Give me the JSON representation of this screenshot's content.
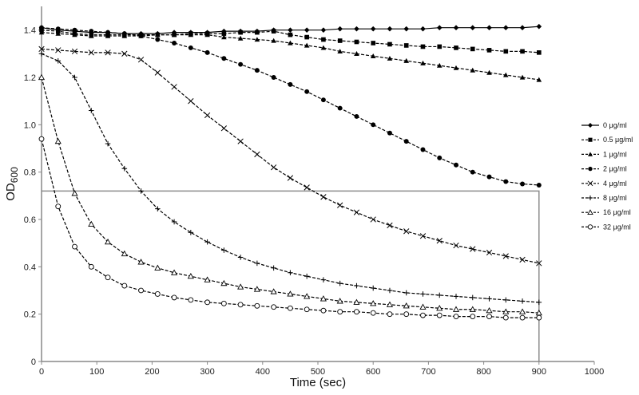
{
  "chart_data": {
    "type": "line",
    "title": "",
    "xlabel": "Time (sec)",
    "ylabel": {
      "main": "OD",
      "sub": "600"
    },
    "xlim": [
      0,
      1000
    ],
    "ylim": [
      0,
      1.5
    ],
    "xticks": [
      0,
      100,
      200,
      300,
      400,
      500,
      600,
      700,
      800,
      900,
      1000
    ],
    "yticks": [
      0,
      0.2,
      0.4,
      0.6,
      0.8,
      1.0,
      1.2,
      1.4
    ],
    "xtick_labels": [
      "0",
      "100",
      "200",
      "300",
      "400",
      "500",
      "600",
      "700",
      "800",
      "900",
      "1000"
    ],
    "ytick_labels": [
      "0",
      "0.2",
      "0.4",
      "0.6",
      "0.8",
      "1.0",
      "1.2",
      "1.4"
    ],
    "grid": false,
    "legend_position": "right",
    "x": [
      0,
      30,
      60,
      90,
      120,
      150,
      180,
      210,
      240,
      270,
      300,
      330,
      360,
      390,
      420,
      450,
      480,
      510,
      540,
      570,
      600,
      630,
      660,
      690,
      720,
      750,
      780,
      810,
      840,
      870,
      900
    ],
    "series": [
      {
        "name": "0 μg/ml",
        "marker": "diamond",
        "line": "solid",
        "color": "#000000",
        "values": [
          1.41,
          1.4,
          1.395,
          1.39,
          1.39,
          1.385,
          1.385,
          1.385,
          1.39,
          1.39,
          1.39,
          1.395,
          1.395,
          1.395,
          1.4,
          1.4,
          1.4,
          1.4,
          1.405,
          1.405,
          1.405,
          1.405,
          1.405,
          1.405,
          1.41,
          1.41,
          1.41,
          1.41,
          1.41,
          1.41,
          1.415
        ]
      },
      {
        "name": "0.5 μg/ml",
        "marker": "square",
        "line": "dashed",
        "color": "#000000",
        "values": [
          1.4,
          1.395,
          1.385,
          1.38,
          1.38,
          1.38,
          1.38,
          1.38,
          1.38,
          1.385,
          1.385,
          1.385,
          1.39,
          1.39,
          1.395,
          1.38,
          1.37,
          1.36,
          1.355,
          1.35,
          1.345,
          1.34,
          1.335,
          1.33,
          1.33,
          1.325,
          1.32,
          1.315,
          1.31,
          1.31,
          1.305
        ]
      },
      {
        "name": "1 μg/ml",
        "marker": "triangle",
        "line": "dashed",
        "color": "#000000",
        "values": [
          1.39,
          1.385,
          1.38,
          1.375,
          1.375,
          1.375,
          1.375,
          1.38,
          1.38,
          1.38,
          1.38,
          1.37,
          1.365,
          1.36,
          1.355,
          1.345,
          1.335,
          1.325,
          1.31,
          1.3,
          1.29,
          1.28,
          1.27,
          1.26,
          1.25,
          1.24,
          1.23,
          1.22,
          1.21,
          1.2,
          1.19
        ]
      },
      {
        "name": "2 μg/ml",
        "marker": "circle",
        "line": "dashed",
        "color": "#000000",
        "values": [
          1.41,
          1.405,
          1.4,
          1.395,
          1.39,
          1.385,
          1.375,
          1.36,
          1.345,
          1.325,
          1.305,
          1.28,
          1.255,
          1.23,
          1.2,
          1.17,
          1.14,
          1.105,
          1.07,
          1.035,
          1.0,
          0.965,
          0.93,
          0.895,
          0.86,
          0.83,
          0.8,
          0.78,
          0.76,
          0.75,
          0.745
        ]
      },
      {
        "name": "4 μg/ml",
        "marker": "x",
        "line": "dashed",
        "color": "#000000",
        "values": [
          1.32,
          1.315,
          1.31,
          1.305,
          1.305,
          1.3,
          1.275,
          1.22,
          1.16,
          1.1,
          1.04,
          0.985,
          0.93,
          0.875,
          0.82,
          0.775,
          0.735,
          0.695,
          0.66,
          0.63,
          0.6,
          0.575,
          0.55,
          0.53,
          0.51,
          0.49,
          0.475,
          0.46,
          0.445,
          0.43,
          0.415
        ]
      },
      {
        "name": "8 μg/ml",
        "marker": "plus",
        "line": "dashed",
        "color": "#000000",
        "values": [
          1.3,
          1.27,
          1.2,
          1.06,
          0.92,
          0.815,
          0.72,
          0.645,
          0.59,
          0.545,
          0.505,
          0.47,
          0.44,
          0.415,
          0.395,
          0.375,
          0.36,
          0.345,
          0.33,
          0.32,
          0.31,
          0.3,
          0.29,
          0.285,
          0.28,
          0.275,
          0.27,
          0.265,
          0.26,
          0.255,
          0.25
        ]
      },
      {
        "name": "16 μg/ml",
        "marker": "triangle-open",
        "line": "dashed",
        "color": "#000000",
        "values": [
          1.2,
          0.93,
          0.71,
          0.58,
          0.505,
          0.455,
          0.42,
          0.395,
          0.375,
          0.36,
          0.345,
          0.33,
          0.315,
          0.305,
          0.295,
          0.285,
          0.275,
          0.265,
          0.255,
          0.25,
          0.245,
          0.24,
          0.235,
          0.23,
          0.225,
          0.22,
          0.22,
          0.215,
          0.21,
          0.21,
          0.205
        ]
      },
      {
        "name": "32 μg/ml",
        "marker": "circle-open",
        "line": "dashed",
        "color": "#000000",
        "values": [
          0.94,
          0.655,
          0.485,
          0.4,
          0.355,
          0.32,
          0.3,
          0.285,
          0.27,
          0.26,
          0.25,
          0.245,
          0.24,
          0.235,
          0.23,
          0.225,
          0.22,
          0.215,
          0.21,
          0.21,
          0.205,
          0.2,
          0.2,
          0.195,
          0.195,
          0.19,
          0.19,
          0.19,
          0.185,
          0.185,
          0.185
        ]
      }
    ],
    "reference_box": {
      "x_from": 0,
      "x_to": 900,
      "y_top": 0.72,
      "color": "#8c8c8c"
    }
  }
}
